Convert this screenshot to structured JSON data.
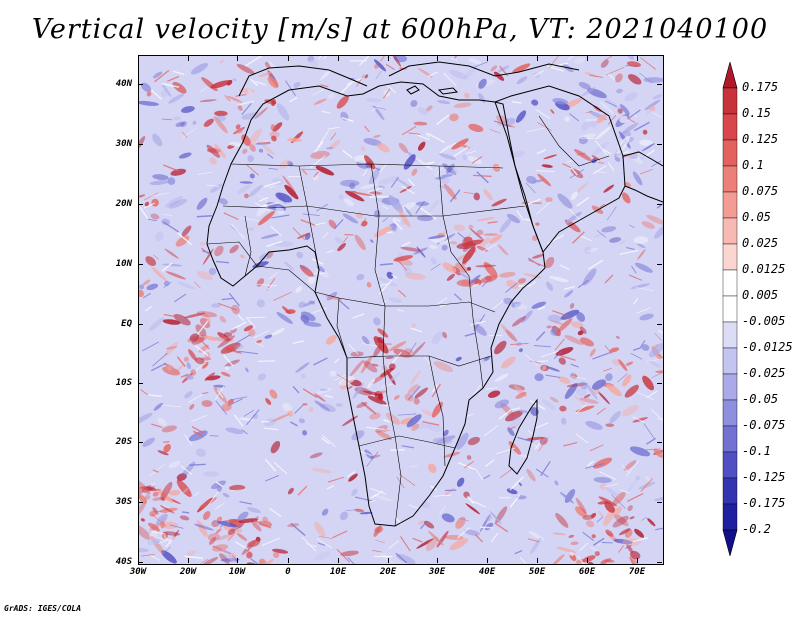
{
  "title": "Vertical velocity [m/s] at 600hPa, VT: 2021040100",
  "credit": "GrADS: IGES/COLA",
  "latitude_labels": [
    "40N",
    "30N",
    "20N",
    "10N",
    "EQ",
    "10S",
    "20S",
    "30S",
    "40S"
  ],
  "longitude_labels": [
    "30W",
    "20W",
    "10W",
    "0",
    "10E",
    "20E",
    "30E",
    "40E",
    "50E",
    "60E",
    "70E"
  ],
  "colorbar": {
    "labels": [
      "0.175",
      "0.15",
      "0.125",
      "0.1",
      "0.075",
      "0.05",
      "0.025",
      "0.0125",
      "0.005",
      "-0.005",
      "-0.0125",
      "-0.025",
      "-0.05",
      "-0.075",
      "-0.1",
      "-0.125",
      "-0.175",
      "-0.2"
    ],
    "colors": [
      "#b2182b",
      "#c8333a",
      "#d9474a",
      "#e4625e",
      "#ec8078",
      "#f29c93",
      "#f7b9b1",
      "#fbd6d0",
      "#ffffff",
      "#ffffff",
      "#dcdcf6",
      "#c4c4f0",
      "#aaaae8",
      "#8f8fdf",
      "#7272d3",
      "#5050c4",
      "#3434b0",
      "#1f1fa0",
      "#10108a"
    ]
  }
}
